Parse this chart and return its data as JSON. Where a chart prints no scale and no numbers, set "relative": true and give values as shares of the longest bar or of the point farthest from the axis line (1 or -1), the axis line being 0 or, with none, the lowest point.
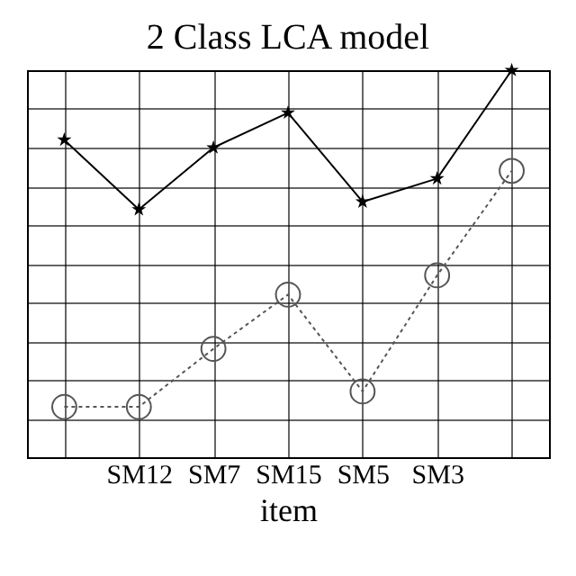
{
  "chart_data": {
    "type": "line",
    "title": "2 Class LCA model",
    "xlabel": "item",
    "relative": true,
    "grid": true,
    "categories": [
      null,
      "SM12",
      "SM7",
      "SM15",
      "SM5",
      "SM3",
      null
    ],
    "series": [
      {
        "color": "#000000",
        "marker": "star",
        "line_style": "solid",
        "values": [
          0.82,
          0.64,
          0.8,
          0.89,
          0.66,
          0.72,
          1
        ]
      },
      {
        "color": "#555555",
        "marker": "circle",
        "line_style": "dotted",
        "values": [
          0.13,
          0.13,
          0.28,
          0.42,
          0.17,
          0.47,
          0.74
        ]
      }
    ]
  }
}
